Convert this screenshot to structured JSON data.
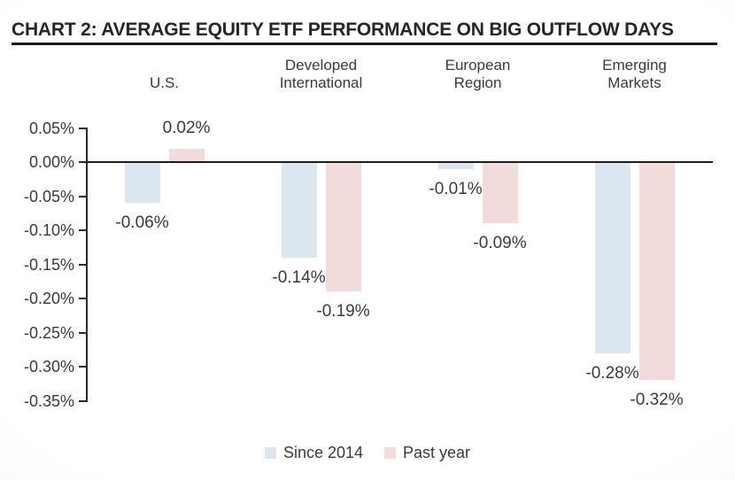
{
  "header": {
    "title": "CHART 2: AVERAGE EQUITY ETF PERFORMANCE ON BIG OUTFLOW DAYS"
  },
  "chart_data": {
    "type": "bar",
    "title": "CHART 2: AVERAGE EQUITY ETF PERFORMANCE ON BIG OUTFLOW DAYS",
    "categories": [
      [
        "U.S."
      ],
      [
        "Developed",
        "International"
      ],
      [
        "European",
        "Region"
      ],
      [
        "Emerging",
        "Markets"
      ]
    ],
    "series": [
      {
        "name": "Since 2014",
        "color": "#dce6f1",
        "values": [
          -0.06,
          -0.14,
          -0.01,
          -0.28
        ],
        "labels": [
          "-0.06%",
          "-0.14%",
          "-0.01%",
          "-0.28%"
        ]
      },
      {
        "name": "Past year",
        "color": "#f2dcdb",
        "values": [
          0.02,
          -0.19,
          -0.09,
          -0.32
        ],
        "labels": [
          "0.02%",
          "-0.19%",
          "-0.09%",
          "-0.32%"
        ]
      }
    ],
    "y_axis": {
      "tick_labels": [
        "0.05%",
        "0.00%",
        "-0.05%",
        "-0.10%",
        "-0.15%",
        "-0.20%",
        "-0.25%",
        "-0.30%",
        "-0.35%"
      ],
      "tick_values": [
        0.05,
        0.0,
        -0.05,
        -0.1,
        -0.15,
        -0.2,
        -0.25,
        -0.3,
        -0.35
      ]
    },
    "ylim": [
      -0.35,
      0.05
    ],
    "xlabel": "",
    "ylabel": "",
    "grid": false,
    "legend_position": "bottom"
  },
  "colors": {
    "since_2014": "#dce6f1",
    "past_year": "#f2dcdb",
    "axis": "#1c1c1c",
    "text": "#3a3a3a",
    "title": "#262626"
  }
}
